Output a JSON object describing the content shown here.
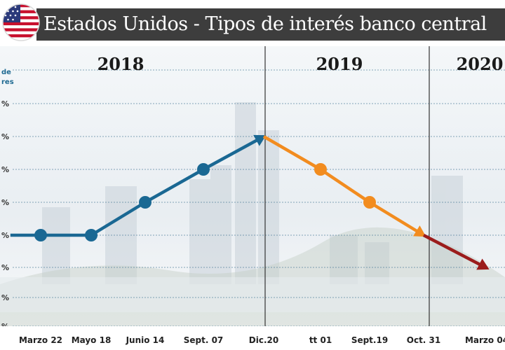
{
  "header": {
    "title": "Estados Unidos - Tipos de interés banco central"
  },
  "colors": {
    "increase": "#1a6893",
    "decrease": "#f28c1f",
    "decrease_2020": "#9b1c1c",
    "header_bg": "#3d3d3d"
  },
  "chart_data": {
    "type": "line",
    "title": "Estados Unidos - Tipos de interés banco central",
    "ylabel": "... de ...res",
    "year_labels": [
      "2018",
      "2019",
      "2020"
    ],
    "categories": [
      "Marzo 22",
      "Mayo 18",
      "Junio 14",
      "Sept. 07",
      "Dic.20",
      "tt 01",
      "Sept.19",
      "Oct. 31",
      "Marzo 04"
    ],
    "y_tick_labels": [
      "%",
      "%",
      "%",
      "%",
      "%",
      "%",
      "%",
      "%"
    ],
    "grid": true,
    "segments": [
      {
        "color_key": "increase",
        "points": [
          [
            -0.6,
            1.75
          ],
          [
            0,
            1.75
          ],
          [
            1,
            1.75
          ],
          [
            2,
            2.0
          ],
          [
            3,
            2.25
          ],
          [
            4,
            2.5
          ]
        ]
      },
      {
        "color_key": "decrease",
        "points": [
          [
            4,
            2.5
          ],
          [
            5,
            2.25
          ],
          [
            6,
            2.0
          ],
          [
            7,
            1.75
          ]
        ]
      },
      {
        "color_key": "decrease_2020",
        "points": [
          [
            7,
            1.75
          ],
          [
            8,
            1.5
          ]
        ]
      }
    ],
    "markers": [
      {
        "x": 0,
        "y": 1.75,
        "color_key": "increase"
      },
      {
        "x": 1,
        "y": 1.75,
        "color_key": "increase"
      },
      {
        "x": 2,
        "y": 2.0,
        "color_key": "increase"
      },
      {
        "x": 3,
        "y": 2.25,
        "color_key": "increase"
      },
      {
        "x": 5,
        "y": 2.25,
        "color_key": "decrease"
      },
      {
        "x": 6,
        "y": 2.0,
        "color_key": "decrease"
      }
    ]
  }
}
